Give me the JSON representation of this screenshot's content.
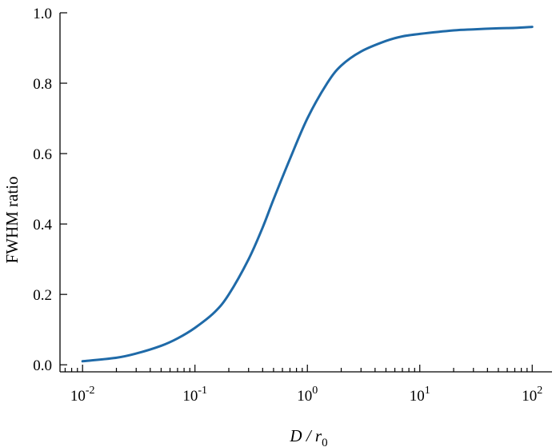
{
  "chart_data": {
    "type": "line",
    "title": "",
    "xlabel": "D / r",
    "xlabel_subscript": "0",
    "ylabel": "FWHM ratio",
    "x_scale": "log",
    "xlim": [
      0.0063,
      150
    ],
    "ylim": [
      -0.02,
      1.0
    ],
    "grid": false,
    "legend": "none",
    "x_ticks": [
      {
        "value": 0.01,
        "base": "10",
        "exp": "-2"
      },
      {
        "value": 0.1,
        "base": "10",
        "exp": "-1"
      },
      {
        "value": 1,
        "base": "10",
        "exp": "0"
      },
      {
        "value": 10,
        "base": "10",
        "exp": "1"
      },
      {
        "value": 100,
        "base": "10",
        "exp": "2"
      }
    ],
    "y_ticks": [
      {
        "value": 0.0,
        "label": "0.0"
      },
      {
        "value": 0.2,
        "label": "0.2"
      },
      {
        "value": 0.4,
        "label": "0.4"
      },
      {
        "value": 0.6,
        "label": "0.6"
      },
      {
        "value": 0.8,
        "label": "0.8"
      },
      {
        "value": 1.0,
        "label": "1.0"
      }
    ],
    "series": [
      {
        "color": "#1f6aa8",
        "x": [
          0.01,
          0.02,
          0.03,
          0.05,
          0.07,
          0.1,
          0.15,
          0.2,
          0.3,
          0.4,
          0.5,
          0.7,
          1.0,
          1.5,
          2.0,
          3.0,
          5.0,
          7.0,
          10,
          20,
          30,
          50,
          70,
          100
        ],
        "y": [
          0.01,
          0.02,
          0.032,
          0.054,
          0.075,
          0.105,
          0.15,
          0.2,
          0.3,
          0.39,
          0.47,
          0.585,
          0.7,
          0.8,
          0.85,
          0.89,
          0.92,
          0.933,
          0.94,
          0.95,
          0.953,
          0.956,
          0.957,
          0.96
        ]
      }
    ]
  }
}
